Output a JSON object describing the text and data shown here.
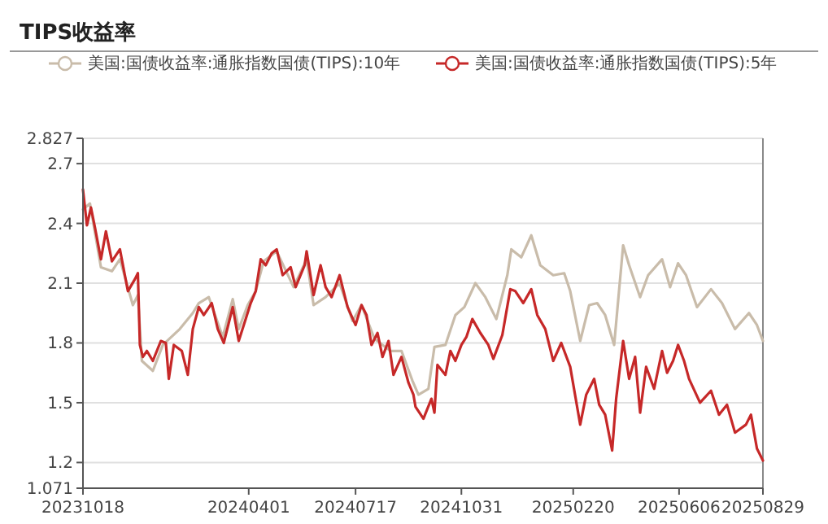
{
  "chart_data": {
    "type": "line",
    "title": "TIPS收益率",
    "legend": "top",
    "grid": "y",
    "xlim": [
      "2023-10-18",
      "2025-08-29"
    ],
    "xticks": [
      {
        "value": "2023-10-18",
        "label": "20231018"
      },
      {
        "value": "2024-04-01",
        "label": "20240401"
      },
      {
        "value": "2024-07-17",
        "label": "20240717"
      },
      {
        "value": "2024-10-31",
        "label": "20241031"
      },
      {
        "value": "2025-02-20",
        "label": "20250220"
      },
      {
        "value": "2025-06-06",
        "label": "20250606"
      },
      {
        "value": "2025-08-29",
        "label": "20250829"
      }
    ],
    "ylim": [
      1.071,
      2.827
    ],
    "yticks": [
      1.071,
      1.2,
      1.5,
      1.8,
      2.1,
      2.4,
      2.7,
      2.827
    ],
    "series": [
      {
        "name": "美国:国债收益率:通胀指数国债(TIPS):10年",
        "color": "#c9bcaa",
        "x": [
          "2023-10-18",
          "2023-10-25",
          "2023-11-05",
          "2023-11-16",
          "2023-11-24",
          "2023-12-07",
          "2023-12-12",
          "2023-12-16",
          "2023-12-27",
          "2024-01-06",
          "2024-01-23",
          "2024-02-05",
          "2024-02-11",
          "2024-02-21",
          "2024-03-06",
          "2024-03-16",
          "2024-03-22",
          "2024-03-31",
          "2024-04-08",
          "2024-04-16",
          "2024-04-29",
          "2024-05-16",
          "2024-05-29",
          "2024-06-05",
          "2024-06-17",
          "2024-07-01",
          "2024-07-14",
          "2024-07-23",
          "2024-08-05",
          "2024-08-21",
          "2024-09-01",
          "2024-09-12",
          "2024-09-18",
          "2024-09-28",
          "2024-10-04",
          "2024-10-15",
          "2024-10-25",
          "2024-11-03",
          "2024-11-14",
          "2024-11-24",
          "2024-12-05",
          "2024-12-16",
          "2024-12-20",
          "2024-12-30",
          "2025-01-09",
          "2025-01-18",
          "2025-01-31",
          "2025-02-11",
          "2025-02-17",
          "2025-02-27",
          "2025-03-08",
          "2025-03-16",
          "2025-03-24",
          "2025-04-02",
          "2025-04-11",
          "2025-04-17",
          "2025-04-28",
          "2025-05-06",
          "2025-05-20",
          "2025-05-28",
          "2025-06-05",
          "2025-06-13",
          "2025-06-24",
          "2025-07-08",
          "2025-07-19",
          "2025-08-01",
          "2025-08-15",
          "2025-08-23",
          "2025-08-29"
        ],
        "values": [
          2.47,
          2.5,
          2.18,
          2.16,
          2.22,
          1.99,
          2.04,
          1.71,
          1.66,
          1.79,
          1.87,
          1.95,
          2.0,
          2.03,
          1.83,
          2.02,
          1.87,
          1.99,
          2.06,
          2.21,
          2.26,
          2.08,
          2.22,
          1.99,
          2.03,
          2.1,
          1.91,
          1.99,
          1.82,
          1.76,
          1.76,
          1.61,
          1.54,
          1.57,
          1.78,
          1.79,
          1.94,
          1.98,
          2.1,
          2.03,
          1.92,
          2.14,
          2.27,
          2.23,
          2.34,
          2.19,
          2.14,
          2.15,
          2.06,
          1.81,
          1.99,
          2.0,
          1.94,
          1.79,
          2.29,
          2.19,
          2.03,
          2.14,
          2.22,
          2.08,
          2.2,
          2.14,
          1.98,
          2.07,
          2.0,
          1.87,
          1.95,
          1.89,
          1.81
        ]
      },
      {
        "name": "美国:国债收益率:通胀指数国债(TIPS):5年",
        "color": "#c62828",
        "x": [
          "2023-10-18",
          "2023-10-22",
          "2023-10-26",
          "2023-10-30",
          "2023-11-05",
          "2023-11-10",
          "2023-11-16",
          "2023-11-24",
          "2023-12-02",
          "2023-12-09",
          "2023-12-12",
          "2023-12-14",
          "2023-12-17",
          "2023-12-21",
          "2023-12-27",
          "2024-01-04",
          "2024-01-09",
          "2024-01-12",
          "2024-01-17",
          "2024-01-25",
          "2024-01-31",
          "2024-02-05",
          "2024-02-11",
          "2024-02-16",
          "2024-02-24",
          "2024-03-01",
          "2024-03-07",
          "2024-03-16",
          "2024-03-22",
          "2024-03-29",
          "2024-04-03",
          "2024-04-08",
          "2024-04-13",
          "2024-04-18",
          "2024-04-24",
          "2024-04-29",
          "2024-05-05",
          "2024-05-13",
          "2024-05-18",
          "2024-05-27",
          "2024-05-29",
          "2024-06-05",
          "2024-06-12",
          "2024-06-17",
          "2024-06-23",
          "2024-07-01",
          "2024-07-09",
          "2024-07-17",
          "2024-07-23",
          "2024-07-28",
          "2024-08-02",
          "2024-08-08",
          "2024-08-13",
          "2024-08-19",
          "2024-08-24",
          "2024-09-01",
          "2024-09-08",
          "2024-09-13",
          "2024-09-15",
          "2024-09-23",
          "2024-10-01",
          "2024-10-04",
          "2024-10-07",
          "2024-10-15",
          "2024-10-20",
          "2024-10-25",
          "2024-10-31",
          "2024-11-05",
          "2024-11-11",
          "2024-11-19",
          "2024-11-27",
          "2024-12-02",
          "2024-12-11",
          "2024-12-19",
          "2024-12-24",
          "2025-01-01",
          "2025-01-09",
          "2025-01-15",
          "2025-01-23",
          "2025-01-31",
          "2025-02-08",
          "2025-02-17",
          "2025-02-27",
          "2025-03-05",
          "2025-03-13",
          "2025-03-18",
          "2025-03-24",
          "2025-03-31",
          "2025-04-04",
          "2025-04-11",
          "2025-04-17",
          "2025-04-23",
          "2025-04-28",
          "2025-05-04",
          "2025-05-12",
          "2025-05-20",
          "2025-05-25",
          "2025-05-31",
          "2025-06-05",
          "2025-06-11",
          "2025-06-16",
          "2025-06-27",
          "2025-07-08",
          "2025-07-16",
          "2025-07-24",
          "2025-08-01",
          "2025-08-12",
          "2025-08-17",
          "2025-08-23",
          "2025-08-29"
        ],
        "values": [
          2.57,
          2.39,
          2.48,
          2.38,
          2.22,
          2.36,
          2.21,
          2.27,
          2.06,
          2.12,
          2.15,
          1.79,
          1.73,
          1.76,
          1.71,
          1.81,
          1.8,
          1.62,
          1.79,
          1.76,
          1.64,
          1.87,
          1.98,
          1.94,
          2.0,
          1.87,
          1.8,
          1.98,
          1.81,
          1.92,
          2.0,
          2.06,
          2.22,
          2.19,
          2.25,
          2.27,
          2.14,
          2.18,
          2.08,
          2.19,
          2.26,
          2.04,
          2.19,
          2.08,
          2.03,
          2.14,
          1.98,
          1.89,
          1.99,
          1.94,
          1.79,
          1.85,
          1.73,
          1.81,
          1.64,
          1.73,
          1.6,
          1.54,
          1.48,
          1.42,
          1.52,
          1.45,
          1.69,
          1.64,
          1.76,
          1.71,
          1.79,
          1.83,
          1.92,
          1.85,
          1.79,
          1.72,
          1.84,
          2.07,
          2.06,
          2.0,
          2.07,
          1.94,
          1.87,
          1.71,
          1.8,
          1.68,
          1.39,
          1.54,
          1.62,
          1.49,
          1.44,
          1.26,
          1.52,
          1.81,
          1.62,
          1.73,
          1.45,
          1.68,
          1.57,
          1.76,
          1.65,
          1.71,
          1.79,
          1.71,
          1.62,
          1.5,
          1.56,
          1.44,
          1.49,
          1.35,
          1.39,
          1.44,
          1.27,
          1.21
        ]
      }
    ]
  }
}
